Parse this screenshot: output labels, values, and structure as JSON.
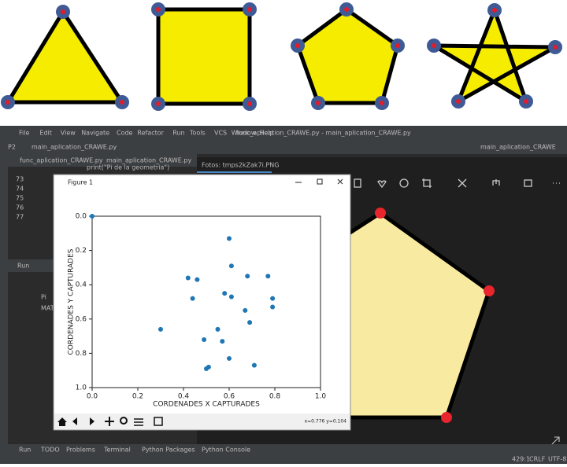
{
  "ide": {
    "menu": [
      "File",
      "Edit",
      "View",
      "Navigate",
      "Code",
      "Refactor",
      "Run",
      "Tools",
      "VCS",
      "Window",
      "Help"
    ],
    "window_title": "func_aplication_CRAWE.py - main_aplication_CRAWE.py",
    "project_file": "main_aplication_CRAWE.py",
    "run_config": "main_aplication_CRAWE",
    "tabs": [
      "func_aplication_CRAWE.py",
      "main_aplication_CRAWE.py"
    ],
    "code_line": "print(\"Pi de la geometria\")",
    "line_numbers": [
      "73",
      "74",
      "75",
      "76",
      "77"
    ],
    "photo_title": "Fotos: tmps2kZak7i.PNG",
    "run_tab": "Run",
    "console_lines": [
      "Pi",
      "MAT"
    ],
    "figure_title": "Figure 1",
    "coords": "x=0.776 y=0.104",
    "bottom_tabs": [
      "Run",
      "TODO",
      "Problems",
      "Terminal",
      "Python Packages",
      "Python Console"
    ],
    "status": [
      "429:1",
      "CRLF",
      "UTF-8"
    ]
  },
  "chart_data": {
    "type": "scatter",
    "xlabel": "CORDENADES X CAPTURADES",
    "ylabel": "CORDENADES Y CAPTURADES",
    "x": [
      0,
      0.6,
      0.61,
      0.42,
      0.46,
      0.68,
      0.77,
      0.58,
      0.61,
      0.44,
      0.79,
      0.79,
      0.67,
      0.69,
      0.3,
      0.55,
      0.49,
      0.57,
      0.6,
      0.71,
      0.51,
      0.5
    ],
    "values": [
      0,
      0.13,
      0.29,
      0.36,
      0.37,
      0.35,
      0.35,
      0.45,
      0.47,
      0.48,
      0.48,
      0.53,
      0.55,
      0.62,
      0.66,
      0.66,
      0.72,
      0.73,
      0.83,
      0.87,
      0.88,
      0.89
    ],
    "color": "#1f77b4",
    "xlim": [
      0,
      1
    ],
    "ylim": [
      0,
      1
    ],
    "y_inverted": true,
    "xticks": [
      {
        "value": 0,
        "label": "0.0"
      },
      0.2,
      0.4,
      0.6,
      0.8,
      {
        "value": 1,
        "label": "1.0"
      }
    ],
    "yticks": [
      {
        "value": 0,
        "label": "0.0"
      },
      0.2,
      0.4,
      0.6,
      0.8,
      {
        "value": 1,
        "label": "1.0"
      }
    ]
  }
}
